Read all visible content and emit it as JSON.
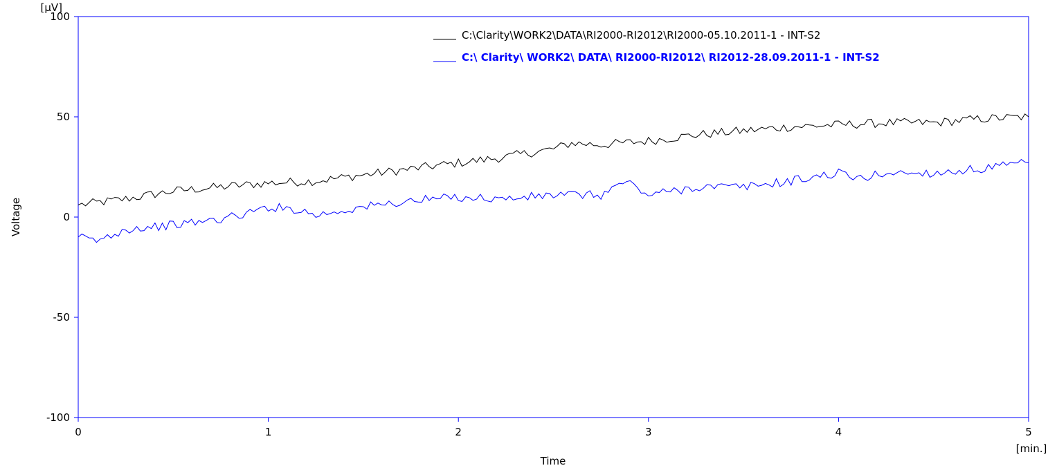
{
  "chart_data": {
    "type": "line",
    "xlabel": "Time",
    "ylabel": "Voltage",
    "x_unit": "[min.]",
    "y_unit": "[µV]",
    "xlim": [
      0,
      5
    ],
    "ylim": [
      -100,
      100
    ],
    "x_ticks": [
      "0",
      "1",
      "2",
      "3",
      "4",
      "5"
    ],
    "y_ticks": [
      "-100",
      "-50",
      "0",
      "50",
      "100"
    ],
    "grid": false,
    "legend_position": "top-right",
    "colors": {
      "frame": "#0000ff",
      "series_1": "#000000",
      "series_2": "#0000ff"
    },
    "series": [
      {
        "name": "C:\\Clarity\\WORK2\\DATA\\RI2000-RI2012\\RI2000-05.10.2011-1 - INT-S2",
        "color": "#000000",
        "x": [
          0,
          0.25,
          0.5,
          0.75,
          1.0,
          1.25,
          1.5,
          1.75,
          2.0,
          2.25,
          2.5,
          2.6,
          2.75,
          3.0,
          3.25,
          3.5,
          3.75,
          4.0,
          4.25,
          4.5,
          4.75,
          5.0
        ],
        "y": [
          6,
          9,
          13,
          15,
          17,
          18,
          21,
          24,
          27,
          30,
          34,
          37,
          36,
          38,
          41,
          43,
          45,
          46,
          47,
          47,
          49,
          50
        ]
      },
      {
        "name": "C:\\ Clarity\\ WORK2\\ DATA\\ RI2000-RI2012\\ RI2012-28.09.2011-1 - INT-S2",
        "color": "#0000ff",
        "x": [
          0,
          0.1,
          0.25,
          0.5,
          0.75,
          0.9,
          1.0,
          1.15,
          1.25,
          1.5,
          1.75,
          2.0,
          2.25,
          2.5,
          2.75,
          2.88,
          3.0,
          3.25,
          3.5,
          3.75,
          4.0,
          4.1,
          4.25,
          4.5,
          4.75,
          5.0
        ],
        "y": [
          -10,
          -12,
          -6,
          -4,
          -1,
          2,
          5,
          4,
          1,
          5,
          8,
          10,
          9,
          11,
          11,
          18,
          11,
          15,
          15,
          18,
          22,
          19,
          22,
          22,
          24,
          27
        ]
      }
    ]
  }
}
